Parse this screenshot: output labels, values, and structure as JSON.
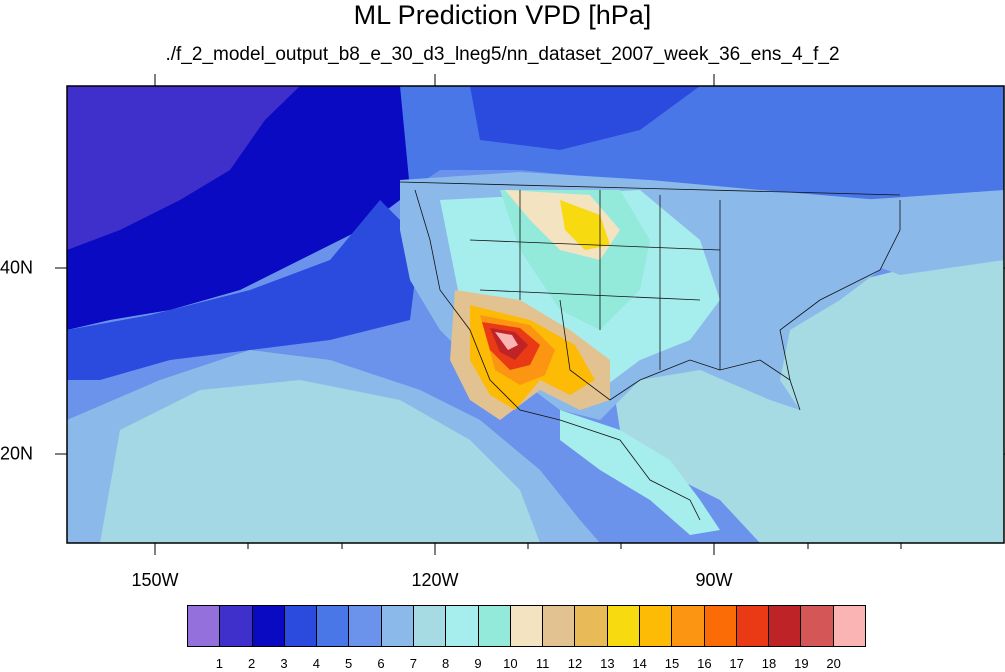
{
  "title": "ML Prediction VPD [hPa]",
  "subtitle": "./f_2_model_output_b8_e_30_d3_lneg5/nn_dataset_2007_week_36_ens_4_f_2",
  "axes": {
    "longitude_labels": [
      "150W",
      "120W",
      "90W"
    ],
    "latitude_labels": [
      "40N",
      "20N"
    ]
  },
  "colorbar": {
    "labels": [
      "1",
      "2",
      "3",
      "4",
      "5",
      "6",
      "7",
      "8",
      "9",
      "10",
      "11",
      "12",
      "13",
      "14",
      "15",
      "16",
      "17",
      "18",
      "19",
      "20"
    ],
    "colors": [
      "#9370DB",
      "#3F2FCB",
      "#0A0AC2",
      "#2A4BDE",
      "#4A77E8",
      "#6C93EC",
      "#8BBAEA",
      "#A6DBE4",
      "#A6EDEE",
      "#93EADB",
      "#F3E3C0",
      "#E2C290",
      "#E9BA58",
      "#F8DA10",
      "#FDBB06",
      "#FB9512",
      "#FB6C06",
      "#E93A15",
      "#BE2327",
      "#D45656",
      "#FBB4B4"
    ]
  }
}
